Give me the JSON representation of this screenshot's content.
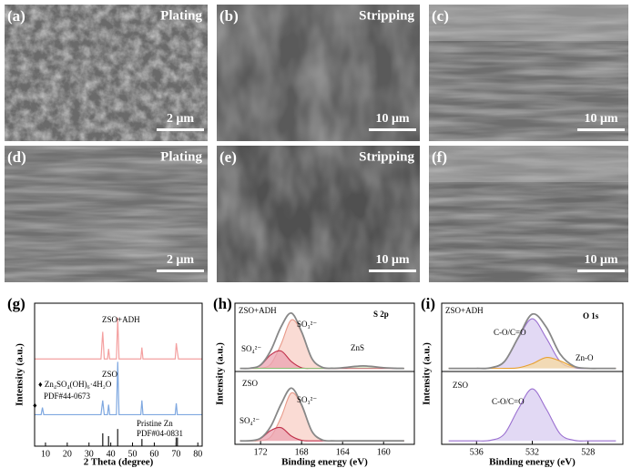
{
  "images": [
    {
      "label": "(a)",
      "caption": "Plating",
      "scale": "2 μm"
    },
    {
      "label": "(b)",
      "caption": "Stripping",
      "scale": "10 μm"
    },
    {
      "label": "(c)",
      "scale": "10 μm"
    },
    {
      "label": "(d)",
      "caption": "Plating",
      "scale": "2 μm"
    },
    {
      "label": "(e)",
      "caption": "Stripping",
      "scale": "10 μm"
    },
    {
      "label": "(f)",
      "scale": "10 μm"
    }
  ],
  "chart_data": [
    {
      "type": "line",
      "label": "(g)",
      "xlabel": "2 Theta (degree)",
      "ylabel": "Intensity (a.u.)",
      "xlim": [
        5,
        82
      ],
      "xticks": [
        10,
        20,
        30,
        40,
        50,
        60,
        70,
        80
      ],
      "panels": [
        {
          "ylim": [
            0,
            10
          ],
          "annotations": [
            "ZSO+ADH",
            "ZSO",
            "♦ Zn₄SO₄(OH)₆·4H₂O",
            "PDF#44-0673",
            "♦",
            "Pristine Zn",
            "PDF#04-0831"
          ],
          "series": [
            {
              "name": "ZSO+ADH",
              "color": "#f4a0a0",
              "x": [
                5,
                35.5,
                36.3,
                37,
                38.5,
                39,
                39.5,
                42.6,
                43.2,
                43.8,
                53.8,
                54.3,
                54.8,
                69.6,
                70.1,
                70.6,
                71.1,
                82
              ],
              "values": [
                6.1,
                6.1,
                8.0,
                6.1,
                6.1,
                6.8,
                6.1,
                6.1,
                9.0,
                6.1,
                6.1,
                6.9,
                6.1,
                6.1,
                7.2,
                6.6,
                6.1,
                6.1
              ]
            },
            {
              "name": "ZSO",
              "color": "#7fa8e0",
              "x": [
                5,
                8,
                8.6,
                9.2,
                35.5,
                36.3,
                37,
                38.5,
                39,
                39.5,
                42.6,
                43.2,
                43.8,
                53.8,
                54.3,
                54.8,
                69.6,
                70.1,
                70.6,
                82
              ],
              "values": [
                2.2,
                2.2,
                2.7,
                2.2,
                2.2,
                3.2,
                2.2,
                2.2,
                2.9,
                2.2,
                2.2,
                5.9,
                2.2,
                2.2,
                3.2,
                2.2,
                2.2,
                3.0,
                2.2,
                2.2
              ]
            }
          ],
          "sticks": {
            "color": "#444",
            "x": [
              36.3,
              39,
              43.2,
              54.3,
              70.1,
              70.6
            ],
            "values": [
              0.9,
              0.7,
              1.2,
              0.5,
              0.6,
              0.6
            ]
          }
        }
      ]
    },
    {
      "type": "area",
      "label": "(h)",
      "xlabel": "Binding energy (eV)",
      "ylabel": "Intensity (a.u.)",
      "xlim": [
        174.5,
        157
      ],
      "xticks": [
        172,
        168,
        164,
        160
      ],
      "panels": [
        {
          "ylim": [
            -0.5,
            10.5
          ],
          "annotations": [
            "ZSO+ADH",
            "S 2p",
            "SO₃²⁻",
            "SO₄²⁻",
            "ZnS"
          ],
          "x": [
            174,
            173,
            172,
            171,
            170,
            169,
            168,
            167,
            166,
            165,
            164,
            163,
            162,
            161,
            160,
            159,
            158
          ],
          "series": [
            {
              "color": "#e89a8a",
              "fill": "#f8cfc5",
              "values": [
                0,
                0,
                0.05,
                0.7,
                3.9,
                7.8,
                5.8,
                1.6,
                0.16,
                0,
                0,
                0,
                0,
                0,
                0,
                0,
                0
              ]
            },
            {
              "color": "#c0304a",
              "fill": "#eba3b2",
              "values": [
                0,
                0.03,
                0.5,
                2.2,
                2.8,
                1.1,
                0.1,
                0,
                0,
                0,
                0,
                0,
                0,
                0,
                0,
                0,
                0
              ]
            },
            {
              "color": "#8fbf78",
              "fill": "#cfe6c2",
              "values": [
                0,
                0,
                0,
                0,
                0,
                0,
                0,
                0,
                0,
                0.02,
                0.1,
                0.28,
                0.4,
                0.28,
                0.1,
                0.02,
                0
              ]
            },
            {
              "color": "#888888",
              "values": [
                0,
                0.03,
                0.55,
                2.9,
                6.7,
                8.9,
                5.9,
                1.6,
                0.18,
                0.02,
                0.1,
                0.28,
                0.4,
                0.28,
                0.1,
                0.02,
                0
              ]
            }
          ]
        },
        {
          "ylim": [
            -0.5,
            10
          ],
          "annotations": [
            "ZSO",
            "SO₃²⁻",
            "SO₄²⁻"
          ],
          "x": [
            174,
            173,
            172,
            171,
            170,
            169,
            168,
            167,
            166,
            165,
            164,
            163,
            162,
            161,
            160,
            159,
            158
          ],
          "series": [
            {
              "color": "#e89a8a",
              "fill": "#f8cfc5",
              "values": [
                0,
                0,
                0.04,
                0.6,
                3.4,
                6.9,
                5.1,
                1.4,
                0.14,
                0,
                0,
                0,
                0,
                0,
                0,
                0,
                0
              ]
            },
            {
              "color": "#c0304a",
              "fill": "#eba3b2",
              "values": [
                0,
                0.02,
                0.34,
                1.5,
                1.9,
                0.7,
                0.08,
                0,
                0,
                0,
                0,
                0,
                0,
                0,
                0,
                0,
                0
              ]
            },
            {
              "color": "#888888",
              "values": [
                0,
                0.02,
                0.38,
                2.1,
                5.3,
                7.6,
                5.2,
                1.4,
                0.14,
                0,
                0,
                0,
                0,
                0,
                0,
                0,
                0
              ]
            }
          ]
        }
      ]
    },
    {
      "type": "area",
      "label": "(i)",
      "xlabel": "Binding energy (eV)",
      "ylabel": "Intensity (a.u.)",
      "xlim": [
        538.5,
        525.5
      ],
      "xticks": [
        536,
        532,
        528
      ],
      "panels": [
        {
          "ylim": [
            -0.5,
            10.5
          ],
          "annotations": [
            "ZSO+ADH",
            "O 1s",
            "C-O/C=O",
            "Zn-O"
          ],
          "x": [
            538,
            537,
            536,
            535,
            534,
            533,
            532,
            531,
            530,
            529,
            528,
            527,
            526
          ],
          "series": [
            {
              "color": "#9a6fd0",
              "fill": "#d8ccf0",
              "values": [
                0,
                0,
                0,
                0.09,
                1.1,
                4.9,
                8,
                4.9,
                1.1,
                0.09,
                0,
                0,
                0
              ]
            },
            {
              "color": "#e8a030",
              "fill": "#f7d9a0",
              "values": [
                0,
                0,
                0,
                0,
                0,
                0.09,
                0.74,
                1.75,
                1.2,
                0.24,
                0.01,
                0,
                0
              ]
            },
            {
              "color": "#888888",
              "values": [
                0,
                0,
                0,
                0.09,
                1.1,
                4.99,
                8.74,
                6.65,
                2.3,
                0.33,
                0.01,
                0,
                0
              ]
            }
          ]
        },
        {
          "ylim": [
            -0.5,
            10
          ],
          "annotations": [
            "ZSO",
            "C-O/C=O"
          ],
          "x": [
            538,
            537,
            536,
            535,
            534,
            533,
            532,
            531,
            530,
            529,
            528,
            527,
            526
          ],
          "series": [
            {
              "color": "#9a6fd0",
              "fill": "#d8ccf0",
              "values": [
                0,
                0,
                0,
                0.08,
                1.0,
                4.6,
                7.5,
                4.6,
                1.0,
                0.08,
                0,
                0,
                0
              ]
            }
          ]
        }
      ]
    }
  ]
}
